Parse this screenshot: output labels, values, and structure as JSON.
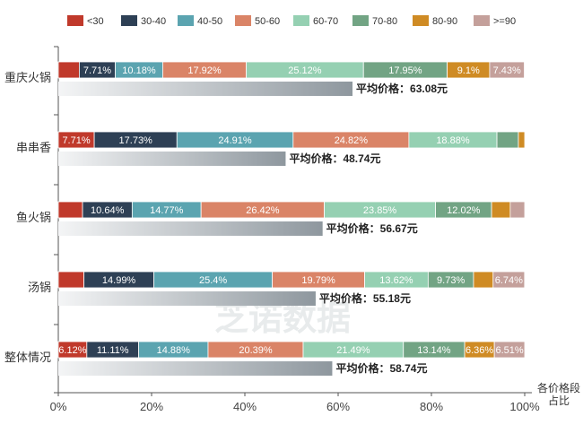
{
  "chart_data": {
    "type": "bar",
    "orientation": "horizontal",
    "stacked": true,
    "percent_stacked": true,
    "categories": [
      "重庆火锅",
      "串串香",
      "鱼火锅",
      "汤锅",
      "整体情况"
    ],
    "series": [
      {
        "name": "<30",
        "color": "#c0392b",
        "values": [
          4.5,
          7.71,
          5.2,
          5.5,
          6.12
        ]
      },
      {
        "name": "30-40",
        "color": "#2e4055",
        "values": [
          7.71,
          17.73,
          10.64,
          14.99,
          11.11
        ]
      },
      {
        "name": "40-50",
        "color": "#5ba4b0",
        "values": [
          10.18,
          24.91,
          14.77,
          25.4,
          14.88
        ]
      },
      {
        "name": "50-60",
        "color": "#da8467",
        "values": [
          17.92,
          24.82,
          26.42,
          19.79,
          20.39
        ]
      },
      {
        "name": "60-70",
        "color": "#95d0b2",
        "values": [
          25.12,
          18.88,
          23.85,
          13.62,
          21.49
        ]
      },
      {
        "name": "70-80",
        "color": "#72a484",
        "values": [
          17.95,
          4.6,
          12.02,
          9.73,
          13.14
        ]
      },
      {
        "name": "80-90",
        "color": "#cf8b24",
        "values": [
          9.1,
          1.35,
          4.0,
          4.2,
          6.36
        ]
      },
      {
        "name": ">=90",
        "color": "#c4a09b",
        "values": [
          7.43,
          0,
          3.1,
          6.74,
          6.51
        ]
      }
    ],
    "segment_labels": [
      [
        "",
        "7.71%",
        "10.18%",
        "17.92%",
        "25.12%",
        "17.95%",
        "9.1%",
        "7.43%"
      ],
      [
        "7.71%",
        "17.73%",
        "24.91%",
        "24.82%",
        "18.88%",
        "",
        "",
        ""
      ],
      [
        "",
        "10.64%",
        "14.77%",
        "26.42%",
        "23.85%",
        "12.02%",
        "",
        ""
      ],
      [
        "",
        "14.99%",
        "25.4%",
        "19.79%",
        "13.62%",
        "9.73%",
        "",
        "6.74%"
      ],
      [
        "6.12%",
        "11.11%",
        "14.88%",
        "20.39%",
        "21.49%",
        "13.14%",
        "6.36%",
        "6.51%"
      ]
    ],
    "avg_price": {
      "label_prefix": "平均价格：",
      "values": [
        63.08,
        48.74,
        56.67,
        55.18,
        58.74
      ],
      "labels": [
        "平均价格：63.08元",
        "平均价格：48.74元",
        "平均价格：56.67元",
        "平均价格：55.18元",
        "平均价格：58.74元"
      ]
    },
    "x_ticks": [
      "0%",
      "20%",
      "40%",
      "60%",
      "80%",
      "100%"
    ],
    "xlim": [
      0,
      100
    ],
    "x_axis_title": [
      "各价格段",
      "占比"
    ],
    "legend_position": "top",
    "watermark": "芝诺数据"
  }
}
